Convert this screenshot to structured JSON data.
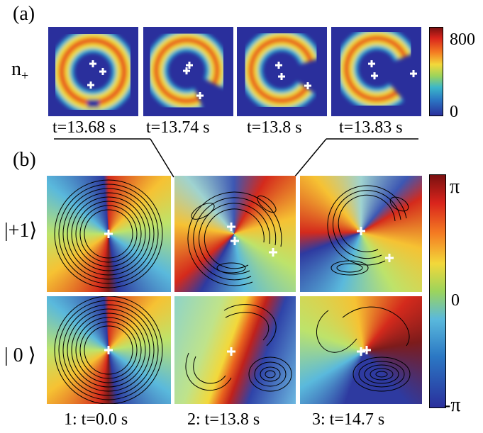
{
  "panel_a": {
    "label": "(a)",
    "row_label": "n",
    "row_label_sub": "+",
    "times": [
      "t=13.68 s",
      "t=13.74 s",
      "t=13.8 s",
      "t=13.83 s"
    ],
    "colorbar": {
      "max": "800",
      "min": "0"
    }
  },
  "panel_b": {
    "label": "(b)",
    "row_labels": [
      "|+1⟩",
      "| 0 ⟩"
    ],
    "times": [
      "1: t=0.0 s",
      "2: t=13.8 s",
      "3: t=14.7 s"
    ],
    "colorbar": {
      "max": "π",
      "mid": "0",
      "min": "-π"
    }
  }
}
